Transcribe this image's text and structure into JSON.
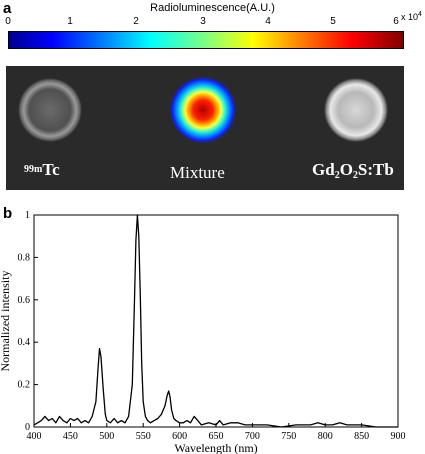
{
  "panel_a": {
    "label": "a",
    "colorbar": {
      "title": "Radioluminescence(A.U.)",
      "ticks": [
        "0",
        "1",
        "2",
        "3",
        "4",
        "5",
        "6"
      ],
      "exponent": "x 10",
      "exponent_power": "4"
    },
    "labels": {
      "tc_mass": "99m",
      "tc_symbol": "Tc",
      "mixture": "Mixture",
      "gd_1": "Gd",
      "gd_sub1": "2",
      "gd_2": "O",
      "gd_sub2": "2",
      "gd_3": "S:Tb"
    }
  },
  "panel_b": {
    "label": "b"
  },
  "chart_data": {
    "type": "line",
    "title": "",
    "xlabel": "Wavelength (nm)",
    "ylabel": "Normalized intensity",
    "xlim": [
      400,
      900
    ],
    "ylim": [
      0,
      1
    ],
    "x_ticks": [
      "400",
      "450",
      "500",
      "550",
      "600",
      "650",
      "700",
      "750",
      "800",
      "850",
      "900"
    ],
    "y_ticks": [
      "0",
      "0.2",
      "0.4",
      "0.6",
      "0.8",
      "1"
    ],
    "series": [
      {
        "x": [
          400,
          405,
          410,
          415,
          420,
          425,
          430,
          435,
          440,
          445,
          450,
          455,
          460,
          465,
          470,
          475,
          480,
          485,
          488,
          490,
          492,
          495,
          498,
          500,
          505,
          510,
          515,
          520,
          525,
          530,
          535,
          538,
          540,
          542,
          544,
          546,
          548,
          550,
          553,
          556,
          560,
          565,
          570,
          575,
          580,
          583,
          585,
          587,
          589,
          592,
          595,
          600,
          605,
          610,
          615,
          620,
          625,
          630,
          640,
          650,
          655,
          660,
          670,
          680,
          690,
          700,
          720,
          740,
          760,
          780,
          790,
          800,
          810,
          820,
          830,
          850,
          870,
          890,
          900
        ],
        "y": [
          0.01,
          0.02,
          0.03,
          0.05,
          0.03,
          0.04,
          0.02,
          0.05,
          0.03,
          0.02,
          0.04,
          0.03,
          0.04,
          0.02,
          0.03,
          0.02,
          0.05,
          0.12,
          0.28,
          0.37,
          0.33,
          0.18,
          0.06,
          0.03,
          0.02,
          0.04,
          0.02,
          0.03,
          0.02,
          0.05,
          0.2,
          0.6,
          0.88,
          1.0,
          0.9,
          0.62,
          0.3,
          0.12,
          0.05,
          0.03,
          0.02,
          0.03,
          0.04,
          0.06,
          0.1,
          0.15,
          0.17,
          0.14,
          0.08,
          0.04,
          0.03,
          0.02,
          0.02,
          0.03,
          0.02,
          0.05,
          0.03,
          0.01,
          0.02,
          0.01,
          0.03,
          0.01,
          0.02,
          0.02,
          0.01,
          0.01,
          0.01,
          0.0,
          0.01,
          0.01,
          0.02,
          0.01,
          0.01,
          0.02,
          0.01,
          0.01,
          0.0,
          0.0,
          0.0
        ]
      }
    ],
    "grid": false,
    "line_color": "#000000"
  }
}
